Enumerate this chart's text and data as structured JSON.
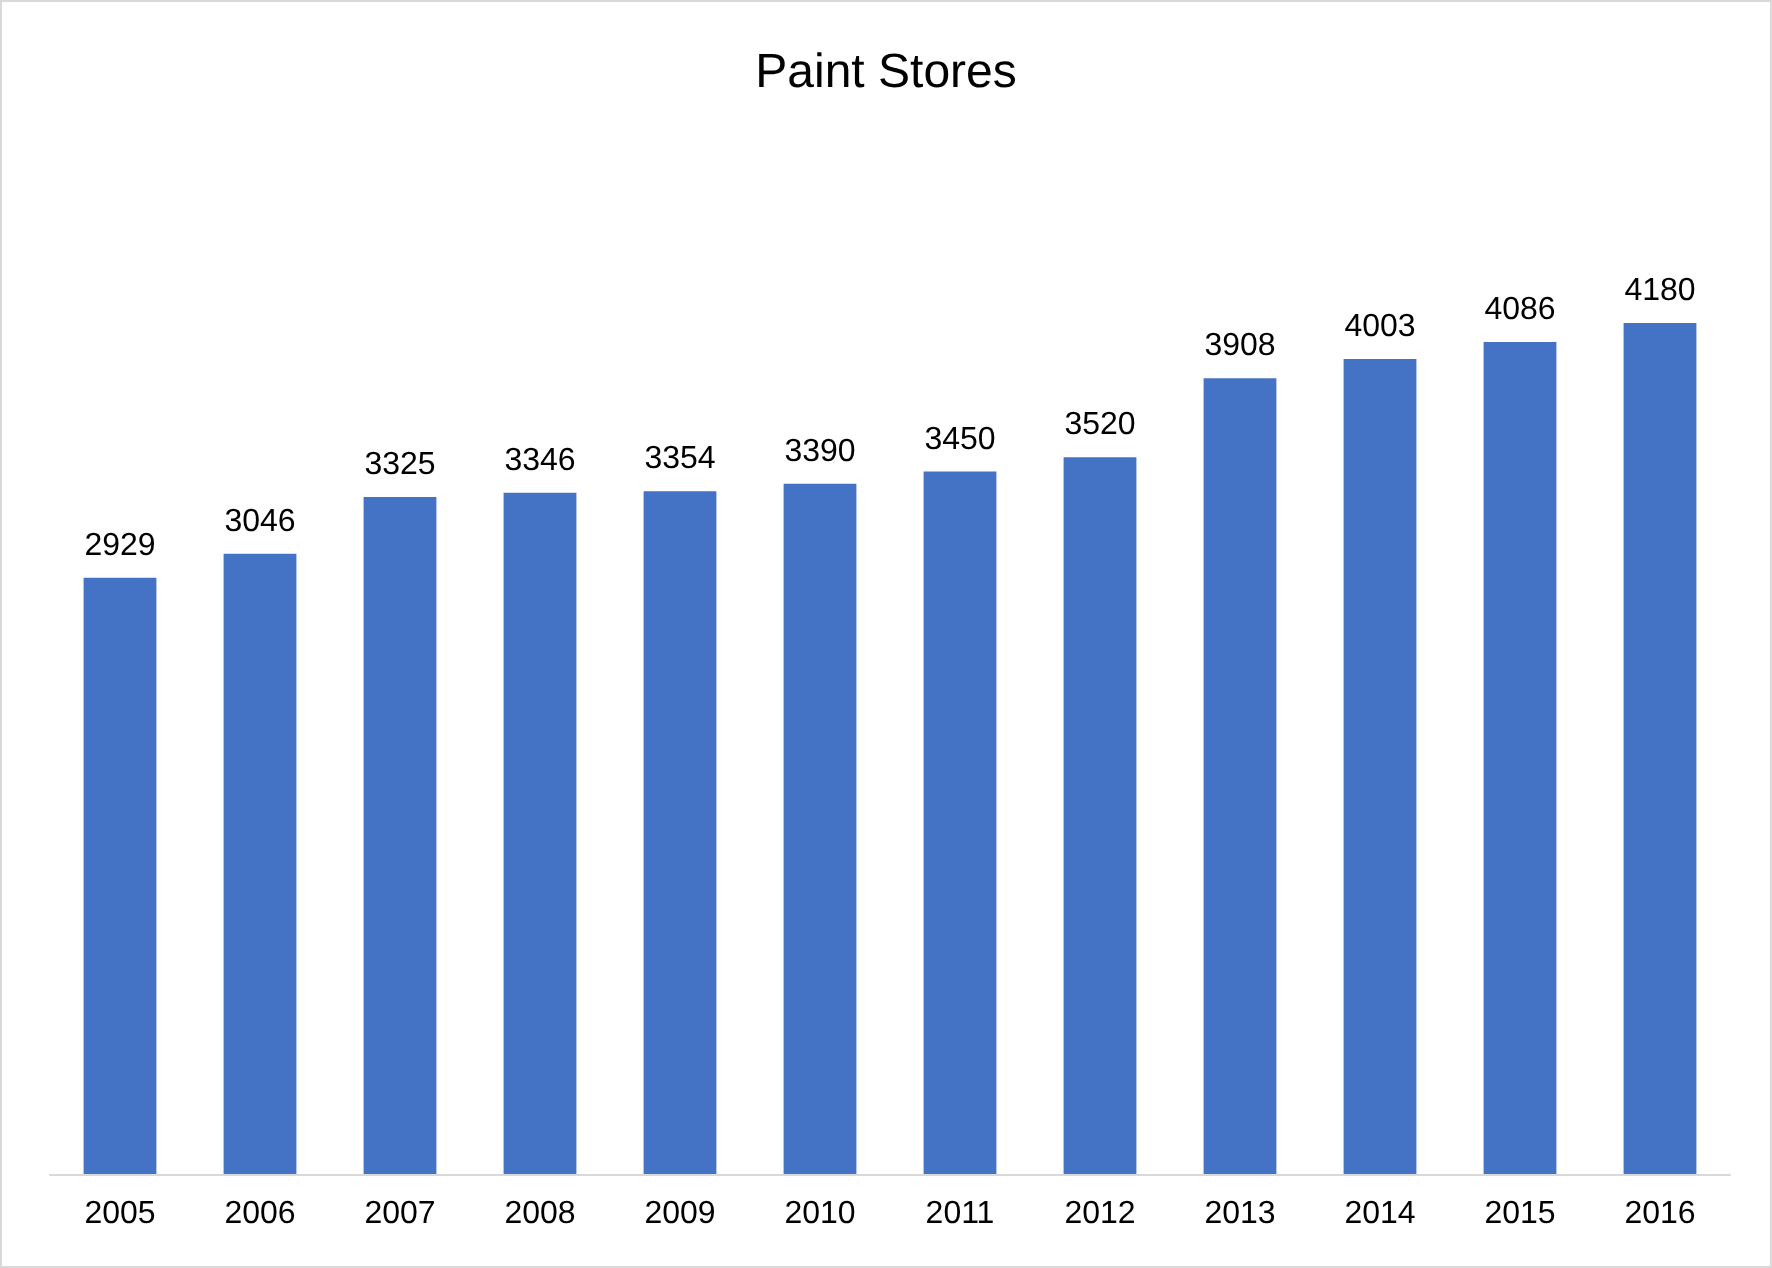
{
  "chart_data": {
    "type": "bar",
    "title": "Paint Stores",
    "categories": [
      "2005",
      "2006",
      "2007",
      "2008",
      "2009",
      "2010",
      "2011",
      "2012",
      "2013",
      "2014",
      "2015",
      "2016"
    ],
    "values": [
      2929,
      3046,
      3325,
      3346,
      3354,
      3390,
      3450,
      3520,
      3908,
      4003,
      4086,
      4180
    ],
    "color": "#4472c4",
    "tick_labels": "x",
    "data_labels": true,
    "grid": false
  }
}
